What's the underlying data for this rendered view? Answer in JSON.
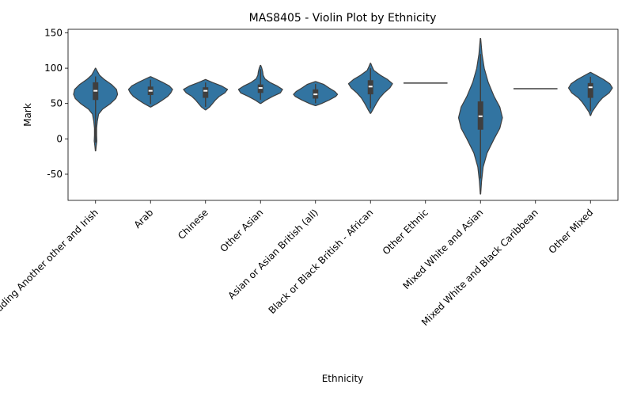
{
  "chart_data": {
    "type": "violin",
    "title": "MAS8405 - Violin Plot by Ethnicity",
    "xlabel": "Ethnicity",
    "ylabel": "Mark",
    "ylim": [
      -87,
      155
    ],
    "yticks": [
      -50,
      0,
      50,
      100,
      150
    ],
    "grid": false,
    "color": "#3274a1",
    "edge_color": "#3f3f3f",
    "categories": [
      {
        "name": "White including Another other and Irish",
        "range": [
          -17,
          100
        ],
        "q1": 55,
        "median": 68,
        "q3": 80,
        "profile": [
          [
            -17,
            0.01
          ],
          [
            -10,
            0.03
          ],
          [
            -3,
            0.06
          ],
          [
            5,
            0.05
          ],
          [
            15,
            0.05
          ],
          [
            25,
            0.08
          ],
          [
            35,
            0.14
          ],
          [
            42,
            0.32
          ],
          [
            50,
            0.68
          ],
          [
            57,
            0.92
          ],
          [
            63,
            1.0
          ],
          [
            70,
            0.95
          ],
          [
            77,
            0.72
          ],
          [
            84,
            0.4
          ],
          [
            90,
            0.18
          ],
          [
            95,
            0.09
          ],
          [
            100,
            0.01
          ]
        ]
      },
      {
        "name": "Arab",
        "range": [
          45,
          88
        ],
        "q1": 62,
        "median": 68,
        "q3": 74,
        "profile": [
          [
            45,
            0.01
          ],
          [
            50,
            0.3
          ],
          [
            55,
            0.55
          ],
          [
            60,
            0.78
          ],
          [
            65,
            0.92
          ],
          [
            70,
            1.0
          ],
          [
            75,
            0.85
          ],
          [
            80,
            0.55
          ],
          [
            85,
            0.22
          ],
          [
            88,
            0.01
          ]
        ]
      },
      {
        "name": "Chinese",
        "range": [
          41,
          84
        ],
        "q1": 58,
        "median": 68,
        "q3": 73,
        "profile": [
          [
            41,
            0.01
          ],
          [
            45,
            0.18
          ],
          [
            50,
            0.32
          ],
          [
            55,
            0.45
          ],
          [
            60,
            0.62
          ],
          [
            65,
            0.88
          ],
          [
            70,
            1.0
          ],
          [
            75,
            0.72
          ],
          [
            80,
            0.3
          ],
          [
            84,
            0.01
          ]
        ]
      },
      {
        "name": "Other Asian",
        "range": [
          50,
          104
        ],
        "q1": 65,
        "median": 72,
        "q3": 77,
        "profile": [
          [
            50,
            0.01
          ],
          [
            55,
            0.25
          ],
          [
            60,
            0.55
          ],
          [
            65,
            0.9
          ],
          [
            70,
            1.0
          ],
          [
            75,
            0.75
          ],
          [
            80,
            0.42
          ],
          [
            85,
            0.2
          ],
          [
            90,
            0.12
          ],
          [
            95,
            0.1
          ],
          [
            100,
            0.06
          ],
          [
            104,
            0.01
          ]
        ]
      },
      {
        "name": "Asian or Asian British (all)",
        "range": [
          47,
          81
        ],
        "q1": 57,
        "median": 63,
        "q3": 70,
        "profile": [
          [
            47,
            0.01
          ],
          [
            50,
            0.28
          ],
          [
            55,
            0.62
          ],
          [
            60,
            0.92
          ],
          [
            63,
            1.0
          ],
          [
            67,
            0.88
          ],
          [
            72,
            0.62
          ],
          [
            77,
            0.38
          ],
          [
            81,
            0.01
          ]
        ]
      },
      {
        "name": "Black or Black British - African",
        "range": [
          36,
          107
        ],
        "q1": 63,
        "median": 74,
        "q3": 83,
        "profile": [
          [
            36,
            0.01
          ],
          [
            42,
            0.12
          ],
          [
            50,
            0.26
          ],
          [
            58,
            0.42
          ],
          [
            65,
            0.62
          ],
          [
            72,
            0.88
          ],
          [
            78,
            1.0
          ],
          [
            84,
            0.78
          ],
          [
            90,
            0.45
          ],
          [
            97,
            0.15
          ],
          [
            103,
            0.06
          ],
          [
            107,
            0.01
          ]
        ]
      },
      {
        "name": "Other Ethnic",
        "single_value": 79
      },
      {
        "name": "Mixed White and Asian",
        "range": [
          -78,
          142
        ],
        "q1": 13,
        "median": 32,
        "q3": 53,
        "profile": [
          [
            -78,
            0.01
          ],
          [
            -60,
            0.05
          ],
          [
            -40,
            0.12
          ],
          [
            -20,
            0.3
          ],
          [
            0,
            0.62
          ],
          [
            15,
            0.88
          ],
          [
            30,
            1.0
          ],
          [
            45,
            0.88
          ],
          [
            60,
            0.62
          ],
          [
            80,
            0.35
          ],
          [
            100,
            0.17
          ],
          [
            120,
            0.07
          ],
          [
            142,
            0.01
          ]
        ]
      },
      {
        "name": "Mixed White and Black Caribbean",
        "single_value": 71
      },
      {
        "name": "Other Mixed",
        "range": [
          33,
          94
        ],
        "q1": 58,
        "median": 73,
        "q3": 79,
        "profile": [
          [
            33,
            0.01
          ],
          [
            38,
            0.07
          ],
          [
            45,
            0.22
          ],
          [
            52,
            0.38
          ],
          [
            58,
            0.55
          ],
          [
            65,
            0.85
          ],
          [
            72,
            1.0
          ],
          [
            78,
            0.88
          ],
          [
            84,
            0.6
          ],
          [
            90,
            0.25
          ],
          [
            94,
            0.01
          ]
        ]
      }
    ]
  }
}
